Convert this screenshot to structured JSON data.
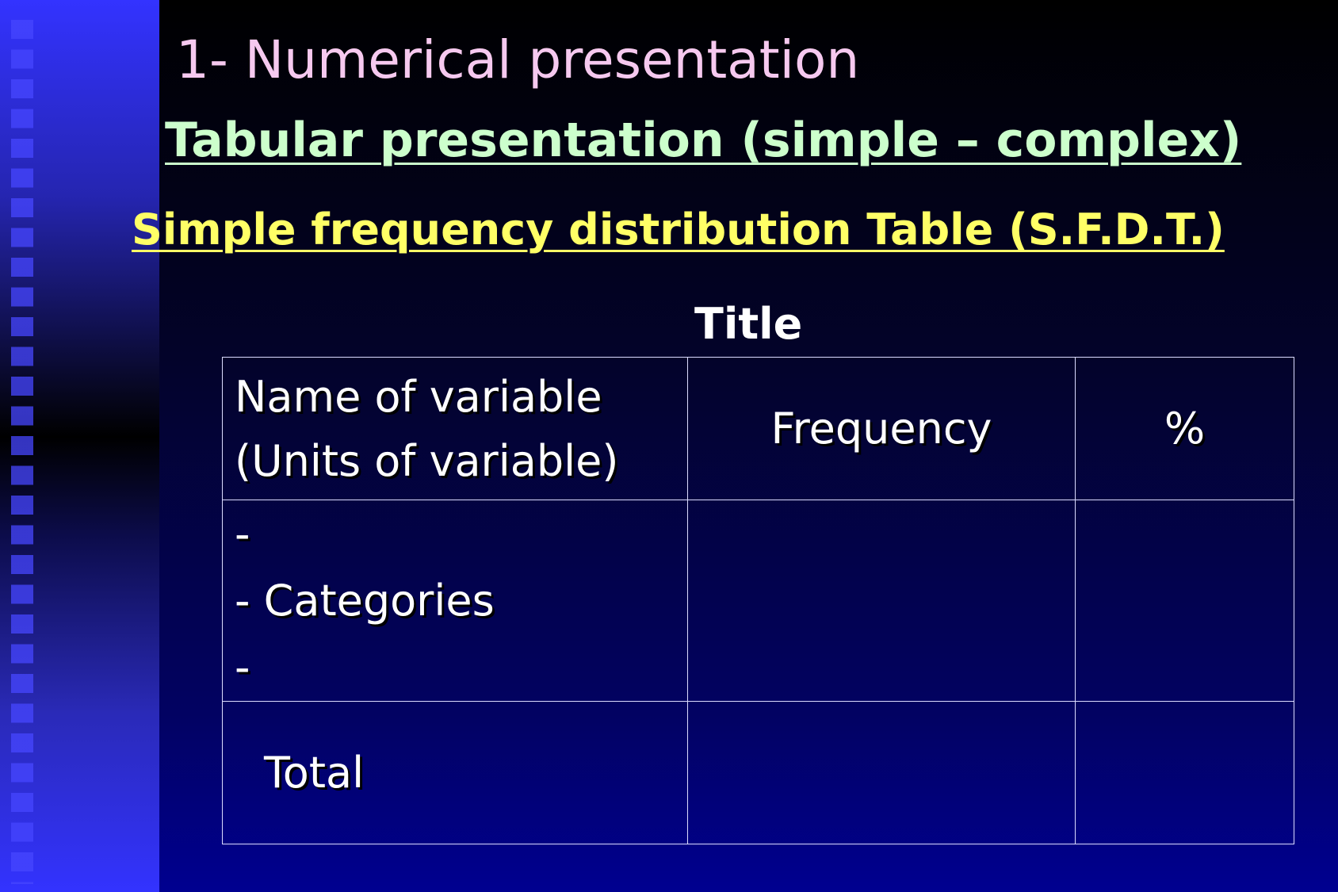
{
  "slide": {
    "title": "1- Numerical presentation",
    "subtitle_1": "Tabular presentation (simple – complex)",
    "subtitle_2": "Simple frequency distribution Table (S.F.D.T.)",
    "table_title": "Title"
  },
  "table": {
    "header": {
      "variable_line_1": "Name of variable",
      "variable_line_2": "(Units of variable)",
      "frequency": "Frequency",
      "percent": "%"
    },
    "body": {
      "line_1": "-",
      "line_2": "- Categories",
      "line_3": "-"
    },
    "total_label": "Total"
  }
}
